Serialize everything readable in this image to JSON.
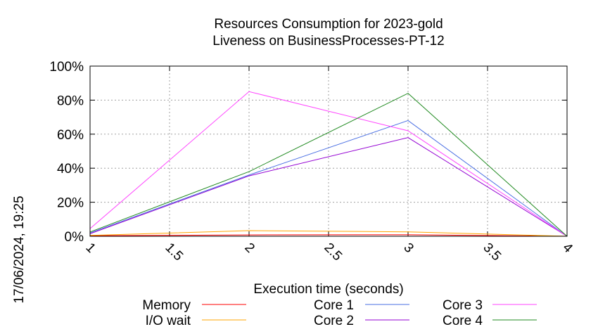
{
  "chart_data": {
    "type": "line",
    "title_line1": "Resources Consumption for 2023-gold",
    "title_line2": "Liveness on BusinessProcesses-PT-12",
    "xlabel": "Execution time (seconds)",
    "ylabel": "",
    "side_label": "17/06/2024, 19:25",
    "xlim": [
      1,
      4
    ],
    "ylim": [
      0,
      100
    ],
    "x_ticks": [
      1,
      1.5,
      2,
      2.5,
      3,
      3.5,
      4
    ],
    "x_tick_labels": [
      "1",
      "1.5",
      "2",
      "2.5",
      "3",
      "3.5",
      "4"
    ],
    "y_ticks": [
      0,
      20,
      40,
      60,
      80,
      100
    ],
    "y_tick_labels": [
      "0%",
      "20%",
      "40%",
      "60%",
      "80%",
      "100%"
    ],
    "grid": true,
    "legend_position": "bottom",
    "x": [
      1,
      2,
      3,
      4
    ],
    "series": [
      {
        "name": "Memory",
        "color": "#ff0000",
        "values": [
          0.3,
          0.8,
          0.9,
          0
        ]
      },
      {
        "name": "I/O wait",
        "color": "#ffa500",
        "values": [
          0.5,
          3.3,
          2.6,
          0
        ]
      },
      {
        "name": "Core 1",
        "color": "#4a6fe3",
        "values": [
          2,
          36,
          68,
          0
        ]
      },
      {
        "name": "Core 2",
        "color": "#9400d3",
        "values": [
          1.5,
          35.5,
          58,
          0
        ]
      },
      {
        "name": "Core 3",
        "color": "#ff44ff",
        "values": [
          4.5,
          85,
          62,
          0
        ]
      },
      {
        "name": "Core 4",
        "color": "#228b22",
        "values": [
          2.5,
          38,
          84,
          0
        ]
      }
    ]
  }
}
